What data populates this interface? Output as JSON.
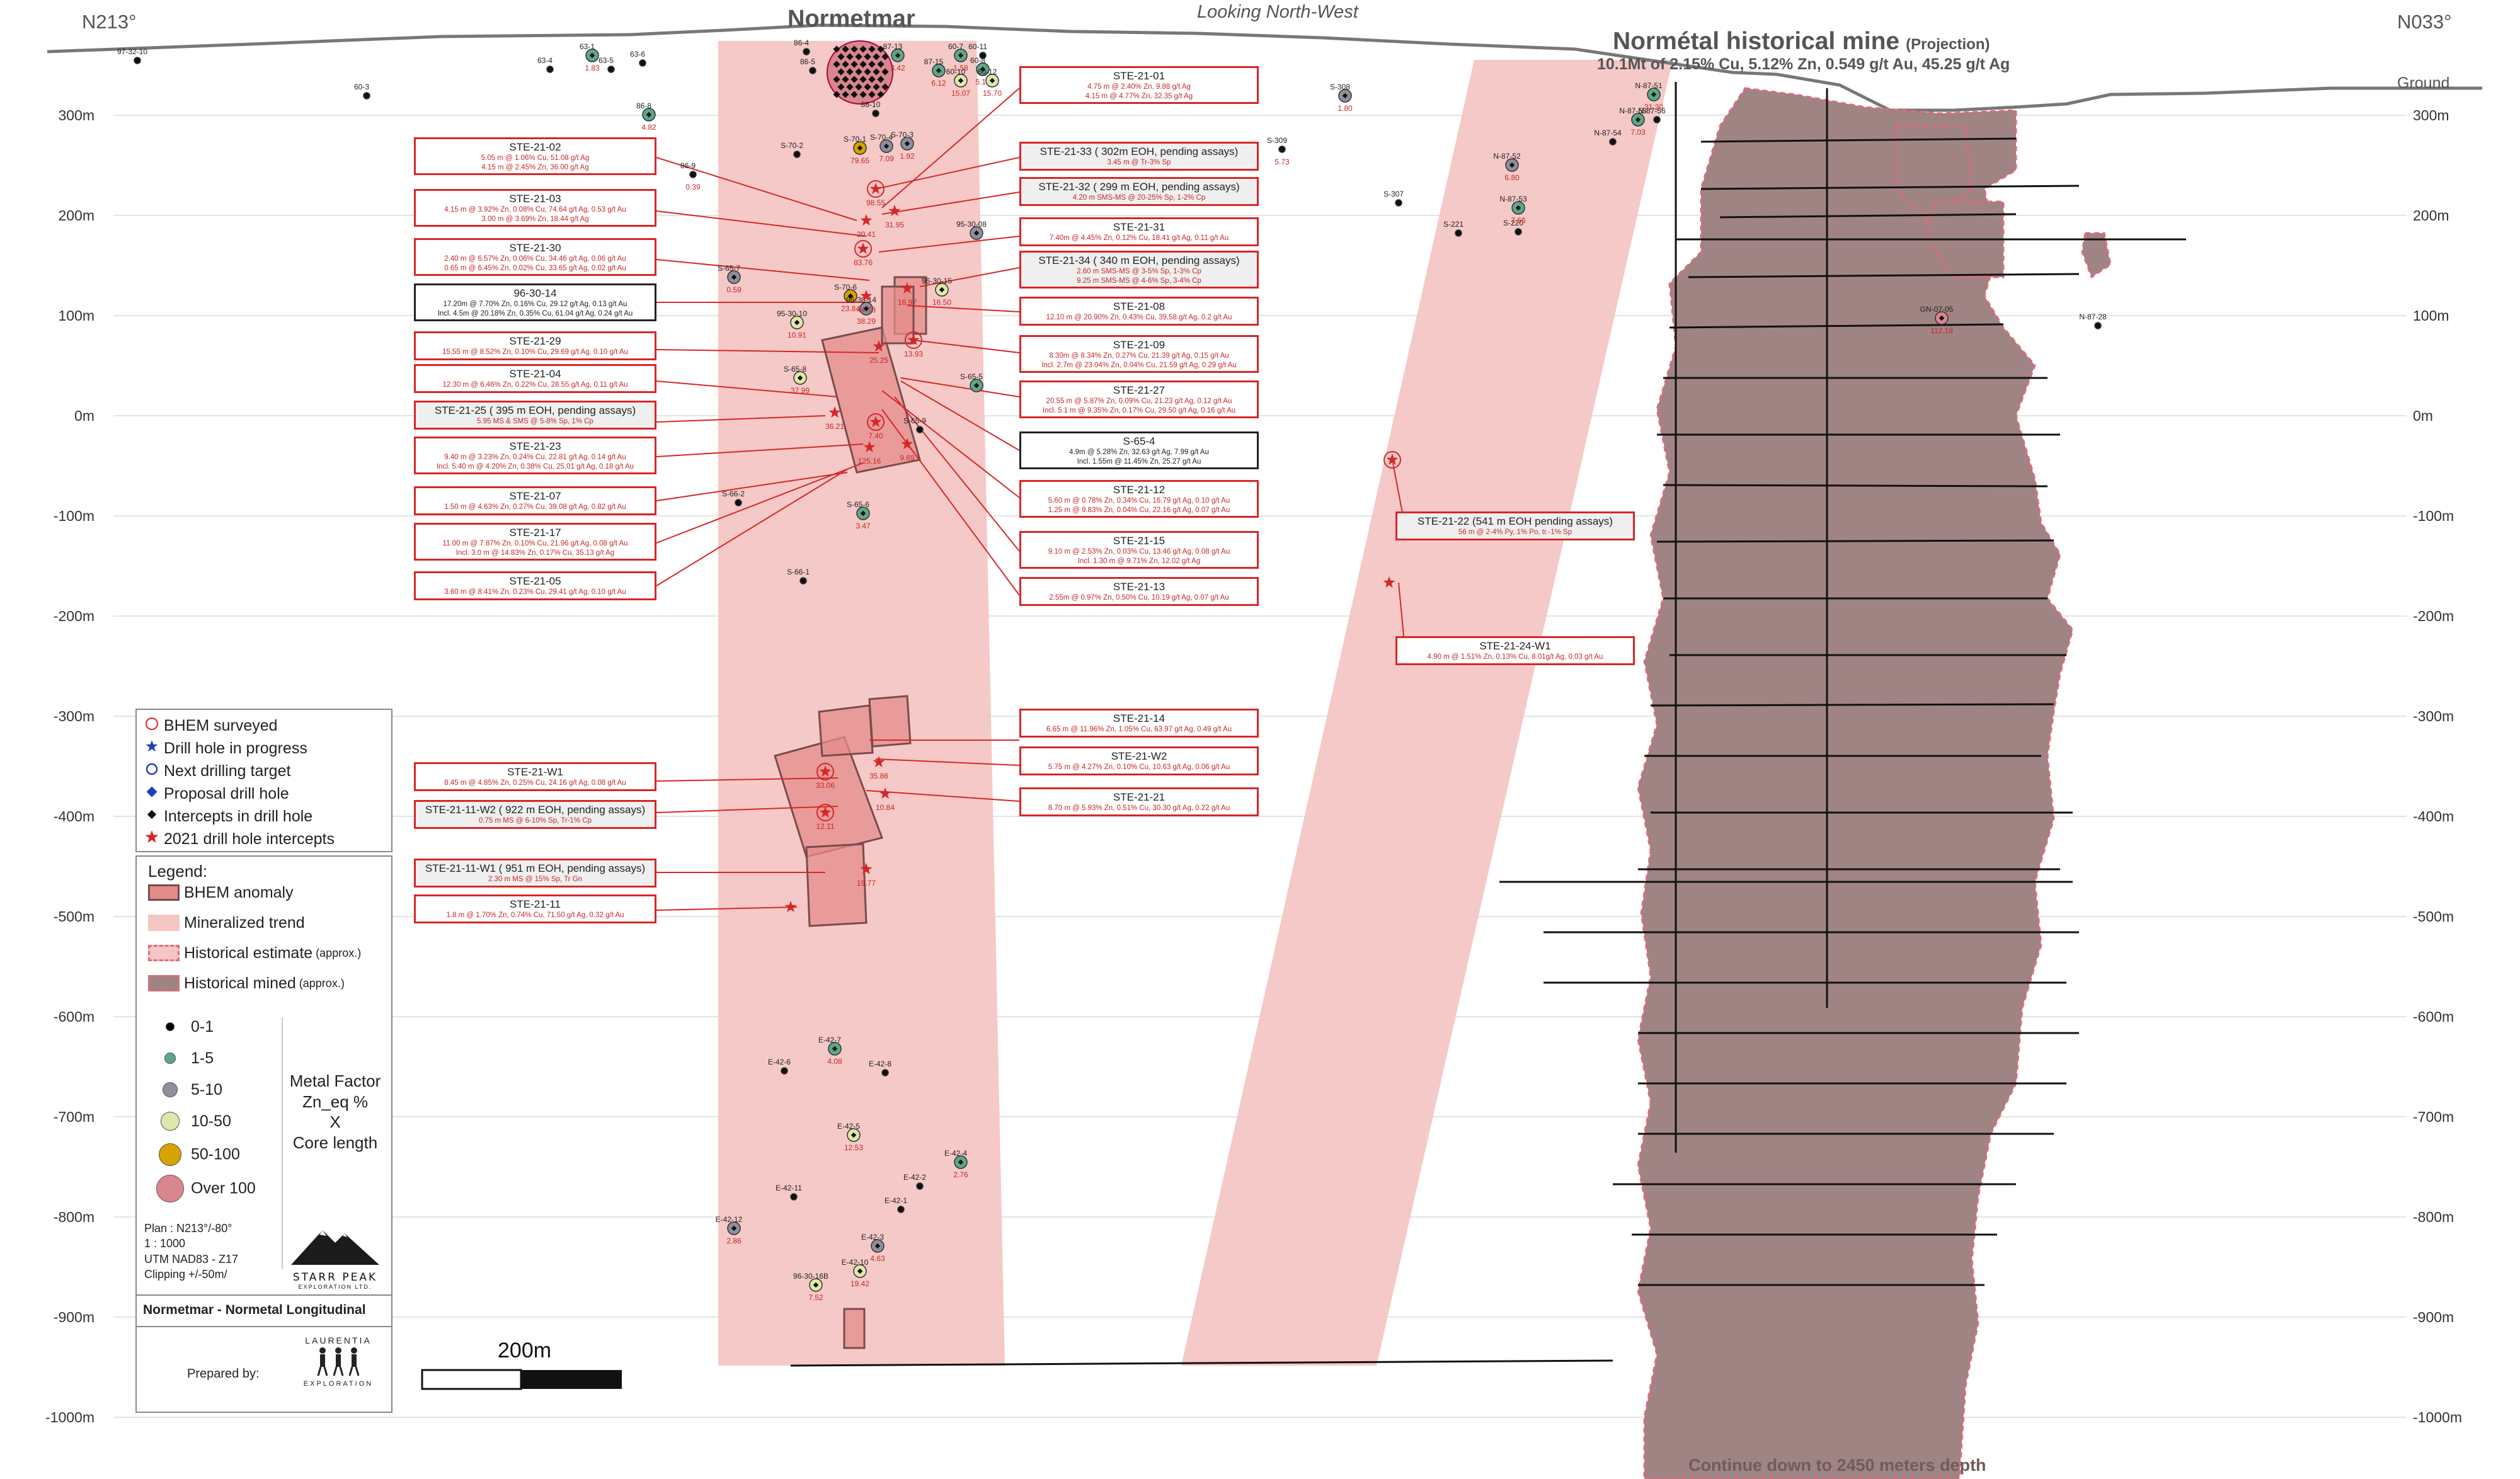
{
  "header": {
    "left_bearing": "N213°",
    "right_bearing": "N033°",
    "title_left": "Normetmar",
    "view": "Looking North-West",
    "title_right": "Normétal historical mine",
    "title_right_suffix": "(Projection)",
    "subtitle_right": "10.1Mt of 2.15% Cu, 5.12% Zn, 0.549 g/t Au, 45.25 g/t Ag",
    "ground_label": "Ground",
    "bottom_note": "Continue down to 2450 meters depth"
  },
  "depth_labels": [
    "300m",
    "200m",
    "100m",
    "0m",
    "-100m",
    "-200m",
    "-300m",
    "-400m",
    "-500m",
    "-600m",
    "-700m",
    "-800m",
    "-900m",
    "-1000m"
  ],
  "callouts_left": [
    {
      "title": "STE-21-02",
      "lines": [
        "5.05 m @ 1.06% Cu, 51.08 g/t Ag",
        "4.15 m @ 2.45% Zn, 36.00 g/t Ag"
      ]
    },
    {
      "title": "STE-21-03",
      "lines": [
        "4.15 m @ 3.92% Zn, 0.08% Cu, 74.64 g/t Ag, 0.53 g/t Au",
        "3.00 m @ 3.69% Zn, 18.44 g/t Ag"
      ]
    },
    {
      "title": "STE-21-30",
      "lines": [
        "2.40 m @ 6.57% Zn, 0.06% Cu, 34.46 g/t Ag, 0.06 g/t Au",
        "0.65 m @ 6.45% Zn, 0.02% Cu, 33.65 g/t Ag, 0.02 g/t Au"
      ]
    },
    {
      "title": "96-30-14",
      "lines": [
        "17.20m @ 7.70% Zn, 0.16% Cu, 29.12 g/t Ag, 0.13 g/t Au",
        "Incl. 4.5m @ 20.18% Zn, 0.35% Cu, 61.04 g/t Ag, 0.24 g/t Au"
      ],
      "style": "black"
    },
    {
      "title": "STE-21-29",
      "lines": [
        "15.55 m @ 8.52% Zn, 0.10% Cu, 29.69 g/t Ag, 0.10 g/t Au"
      ]
    },
    {
      "title": "STE-21-04",
      "lines": [
        "12.30 m @ 6.46% Zn, 0.22% Cu, 28.55 g/t Ag, 0.11 g/t Au"
      ]
    },
    {
      "title": "STE-21-25 ( 395 m EOH, pending assays)",
      "lines": [
        "5.95 MS & SMS @ 5-8% Sp, 1% Cp"
      ],
      "style": "gray"
    },
    {
      "title": "STE-21-23",
      "lines": [
        "9.40 m @ 3.23% Zn, 0.24% Cu, 22.81 g/t Ag, 0.14 g/t Au",
        "Incl. 5.40 m @ 4.20% Zn, 0.38% Cu, 25.01 g/t Ag, 0.18 g/t Au"
      ]
    },
    {
      "title": "STE-21-07",
      "lines": [
        "1.50 m @ 4.63% Zn, 0.27% Cu, 39.08 g/t Ag, 0.82 g/t Au"
      ]
    },
    {
      "title": "STE-21-17",
      "lines": [
        "11.00 m @ 7.87% Zn, 0.10% Cu, 21.96 g/t Ag, 0.08 g/t Au",
        "Incl. 3.0 m @ 14.83% Zn, 0.17% Cu, 35.13 g/t Ag"
      ]
    },
    {
      "title": "STE-21-05",
      "lines": [
        "3.60 m @ 8.41% Zn, 0.23% Cu, 29.41 g/t Ag, 0.10 g/t Au"
      ]
    },
    {
      "title": "STE-21-W1",
      "lines": [
        "8.45 m @ 4.85% Zn, 0.25% Cu, 24.16 g/t Ag, 0.08 g/t Au"
      ]
    },
    {
      "title": "STE-21-11-W2 ( 922 m EOH, pending assays)",
      "lines": [
        "0.75 m MS @ 6-10% Sp, Tr-1% Cp"
      ],
      "style": "gray"
    },
    {
      "title": "STE-21-11-W1 ( 951 m EOH, pending assays)",
      "lines": [
        "2.30 m MS @ 15% Sp, Tr Gn"
      ],
      "style": "gray"
    },
    {
      "title": "STE-21-11",
      "lines": [
        "1.8 m @ 1.70% Zn, 0.74% Cu, 71.50 g/t Ag, 0.32 g/t Au"
      ]
    }
  ],
  "callouts_right": [
    {
      "title": "STE-21-01",
      "lines": [
        "4.75 m @ 2.40% Zn, 9.88 g/t Ag",
        "4.15 m @ 4.77% Zn, 32.35 g/t Ag"
      ]
    },
    {
      "title": "STE-21-33 ( 302m EOH, pending assays)",
      "lines": [
        "3.45 m @ Tr-3% Sp"
      ],
      "style": "gray"
    },
    {
      "title": "STE-21-32 ( 299 m EOH, pending assays)",
      "lines": [
        "4.20 m SMS-MS @ 20-25% Sp, 1-2% Cp"
      ],
      "style": "gray"
    },
    {
      "title": "STE-21-31",
      "lines": [
        "7.40m @ 4.45% Zn, 0.12% Cu, 18.41 g/t Ag, 0.11 g/t Au"
      ]
    },
    {
      "title": "STE-21-34 ( 340 m EOH, pending assays)",
      "lines": [
        "2.60 m SMS-MS @ 3-5% Sp, 1-3% Cp",
        "9.25 m SMS-MS @ 4-6% Sp, 3-4% Cp"
      ],
      "style": "gray"
    },
    {
      "title": "STE-21-08",
      "lines": [
        "12.10 m @ 20.90% Zn, 0.43% Cu, 39.58 g/t Ag, 0.2 g/t Au"
      ]
    },
    {
      "title": "STE-21-09",
      "lines": [
        "8.30m @ 8.34% Zn, 0.27% Cu, 21.39 g/t Ag, 0.15 g/t Au",
        "Incl. 2.7m @ 23.04% Zn, 0.04% Cu, 21.59 g/t Ag, 0.29 g/t Au"
      ]
    },
    {
      "title": "STE-21-27",
      "lines": [
        "20.55 m @ 5.87% Zn, 0.09% Cu, 21.23 g/t Ag, 0.12 g/t Au",
        "Incl. 5.1 m @ 9.35% Zn, 0.17% Cu, 29.50 g/t Ag, 0.16 g/t Au"
      ]
    },
    {
      "title": "S-65-4",
      "lines": [
        "4.9m @ 5.28% Zn, 32.63 g/t Ag, 7.99 g/t Au",
        "Incl. 1.55m @ 11.45% Zn, 25.27 g/t Au"
      ],
      "style": "black"
    },
    {
      "title": "STE-21-12",
      "lines": [
        "5.60 m @ 0.78% Zn, 0.34% Cu, 16.79 g/t Ag, 0.10 g/t Au",
        "1.25 m @ 9.83% Zn, 0.04% Cu, 22.16 g/t Ag, 0.07 g/t Au"
      ]
    },
    {
      "title": "STE-21-15",
      "lines": [
        "9.10 m @ 2.53% Zn, 0.03% Cu, 13.46 g/t Ag, 0.08 g/t Au",
        "Incl. 1.30 m @ 9.71% Zn, 12.02 g/t Ag"
      ]
    },
    {
      "title": "STE-21-13",
      "lines": [
        "2.55m @ 0.97% Zn, 0.50% Cu, 10.19 g/t Ag, 0.07 g/t Au"
      ]
    },
    {
      "title": "STE-21-14",
      "lines": [
        "6.65 m @ 11.96% Zn, 1.05% Cu, 63.97 g/t Ag, 0.49 g/t Au"
      ]
    },
    {
      "title": "STE-21-W2",
      "lines": [
        "5.75 m @ 4.27% Zn, 0.10% Cu, 10.63 g/t Ag, 0.06 g/t Au"
      ]
    },
    {
      "title": "STE-21-21",
      "lines": [
        "8.70 m @ 5.93% Zn, 0.51% Cu, 30.30 g/t Ag, 0.22 g/t Au"
      ]
    }
  ],
  "callouts_far_right": [
    {
      "title": "STE-21-22 (541 m EOH pending assays)",
      "lines": [
        "56 m @ 2-4% Py, 1% Po, tr.-1% Sp"
      ],
      "style": "gray"
    },
    {
      "title": "STE-21-24-W1",
      "lines": [
        "4.90 m @ 1.51% Zn, 0.13% Cu, 8.01g/t Ag, 0.03 g/t Au"
      ]
    }
  ],
  "symbol_legend": [
    {
      "label": "BHEM surveyed",
      "icon": "circle-outline-red"
    },
    {
      "label": "Drill hole in progress",
      "icon": "star-blue"
    },
    {
      "label": "Next drilling target",
      "icon": "circle-outline-blue"
    },
    {
      "label": "Proposal drill hole",
      "icon": "diamond-blue"
    },
    {
      "label": "Intercepts in drill hole",
      "icon": "diamond-black"
    },
    {
      "label": "2021 drill hole intercepts",
      "icon": "star-red"
    }
  ],
  "legend": {
    "title": "Legend:",
    "items": [
      {
        "label": "BHEM anomaly"
      },
      {
        "label": "Mineralized trend"
      },
      {
        "label": "Historical estimate",
        "suffix": "(approx.)"
      },
      {
        "label": "Historical mined",
        "suffix": "(approx.)"
      }
    ],
    "metal_factor": [
      {
        "label": "0-1",
        "color": "#000000"
      },
      {
        "label": "1-5",
        "color": "#5aa889"
      },
      {
        "label": "5-10",
        "color": "#8e8e9e"
      },
      {
        "label": "10-50",
        "color": "#dfe8a8"
      },
      {
        "label": "50-100",
        "color": "#d6a300"
      },
      {
        "label": "Over 100",
        "color": "#d9868e"
      }
    ],
    "metal_factor_title": [
      "Metal Factor",
      "Zn_eq %",
      "X",
      "Core length"
    ],
    "plan_info": [
      "Plan : N213°/-80°",
      "1 : 1000",
      "UTM NAD83 - Z17",
      "Clipping +/-50m/"
    ],
    "logo_text": "STARR PEAK",
    "logo_sub": "EXPLORATION LTD.",
    "figure_title": "Normetmar - Normetal Longitudinal",
    "prepared_by": "Prepared by:",
    "laurentia_top": "LAURENTIA",
    "laurentia_bottom": "EXPLORATION"
  },
  "scale_bar": {
    "label": "200m"
  },
  "holes": [
    {
      "name": "97-32-10"
    },
    {
      "name": "60-3"
    },
    {
      "name": "63-4"
    },
    {
      "name": "63-1",
      "value": "1.83"
    },
    {
      "name": "63-5"
    },
    {
      "name": "63-6"
    },
    {
      "name": "86-8",
      "value": "4.82"
    },
    {
      "name": "86-9",
      "value": "0.39"
    },
    {
      "name": "86-4"
    },
    {
      "name": "86-5"
    },
    {
      "name": "87-13",
      "value": "3.42"
    },
    {
      "name": "87-15",
      "value": "6.12"
    },
    {
      "name": "60-7",
      "value": "1.58"
    },
    {
      "name": "60-11"
    },
    {
      "name": "60-8",
      "value": "5.18"
    },
    {
      "name": "60-12",
      "value": "15.70"
    },
    {
      "name": "60-10",
      "value": "15.07"
    },
    {
      "name": "86-10"
    },
    {
      "name": "S-70-2"
    },
    {
      "name": "S-70-1",
      "value": "79.65"
    },
    {
      "name": "S-70-4",
      "value": "7.09"
    },
    {
      "name": "S-70-3",
      "value": "1.92"
    },
    {
      "name": "95-30-08"
    },
    {
      "name": "S-65-7",
      "value": "0.59"
    },
    {
      "name": "S-70-6",
      "value": "23.84"
    },
    {
      "name": "96-30-15",
      "value": "16.50"
    },
    {
      "name": "96-30-14",
      "value": "38.29"
    },
    {
      "name": "95-30-10",
      "value": "10.91"
    },
    {
      "name": "S-65-8",
      "value": "37.99"
    },
    {
      "name": "S-65-5"
    },
    {
      "name": "S-65-9"
    },
    {
      "name": "S-66-2"
    },
    {
      "name": "S-65-6",
      "value": "3.47"
    },
    {
      "name": "S-66-1"
    },
    {
      "name": "E-42-7",
      "value": "4.08"
    },
    {
      "name": "E-42-6"
    },
    {
      "name": "E-42-8"
    },
    {
      "name": "E-42-5",
      "value": "12.53"
    },
    {
      "name": "E-42-4",
      "value": "2.76"
    },
    {
      "name": "E-42-2"
    },
    {
      "name": "E-42-11"
    },
    {
      "name": "E-42-1"
    },
    {
      "name": "E-42-12",
      "value": "2.86"
    },
    {
      "name": "E-42-3",
      "value": "4.63"
    },
    {
      "name": "E-42-10",
      "value": "19.42"
    },
    {
      "name": "96-30-16B",
      "value": "7.52"
    },
    {
      "name": "S-308",
      "value": "1.80"
    },
    {
      "name": "S-309",
      "value": "5.73"
    },
    {
      "name": "S-307"
    },
    {
      "name": "S-221"
    },
    {
      "name": "S-220"
    },
    {
      "name": "N-87-52",
      "value": "6.80"
    },
    {
      "name": "N-87-53",
      "value": "7.66"
    },
    {
      "name": "N-87-51",
      "value": "31.20"
    },
    {
      "name": "N-87-55",
      "value": "7.03"
    },
    {
      "name": "N-87-56"
    },
    {
      "name": "N-87-54"
    },
    {
      "name": "GN-07-05",
      "value": "112.18"
    },
    {
      "name": "N-87-28"
    }
  ],
  "intercept_values": [
    "98.55",
    "20.41",
    "31.95",
    "83.76",
    "16.97",
    "44.73",
    "13.93",
    "25.25",
    "36.21",
    "7.40",
    "9.69",
    "125.16",
    "33.06",
    "35.86",
    "10.84",
    "12.11",
    "19.77"
  ]
}
